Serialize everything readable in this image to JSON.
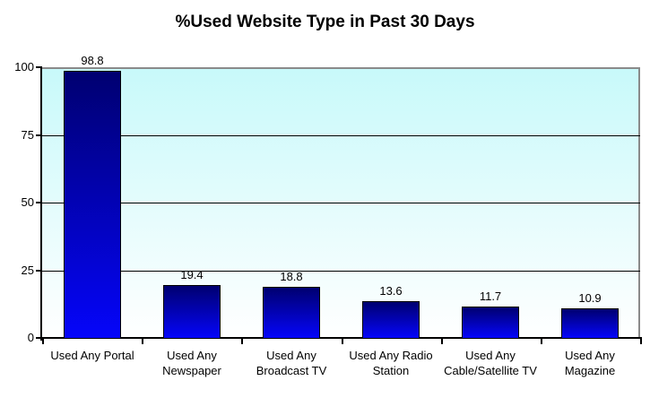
{
  "chart_data": {
    "type": "bar",
    "title": "%Used Website Type in Past 30 Days",
    "categories": [
      "Used Any Portal",
      "Used Any Newspaper",
      "Used Any Broadcast TV",
      "Used Any Radio Station",
      "Used Any Cable/Satellite TV",
      "Used Any Magazine"
    ],
    "values": [
      98.8,
      19.4,
      18.8,
      13.6,
      11.7,
      10.9
    ],
    "value_labels": [
      "98.8",
      "19.4",
      "18.8",
      "13.6",
      "11.7",
      "10.9"
    ],
    "y_ticks": [
      0,
      25,
      50,
      75,
      100
    ],
    "y_tick_labels": [
      "0",
      "25",
      "50",
      "75",
      "100"
    ],
    "ylim": [
      0,
      100
    ],
    "xlabel": "",
    "ylabel": "",
    "grid": true,
    "legend": false,
    "colors": {
      "bar_gradient_top": "#000070",
      "bar_gradient_bottom": "#0505FA",
      "bar_border": "#000000",
      "plot_bg_top": "#C8F9FA",
      "plot_bg_bottom": "#FFFFFF",
      "gridline": "#000000",
      "axis": "#000000",
      "plot_border": "#8A8A8A",
      "text": "#000000",
      "page_bg": "#FFFFFF"
    }
  }
}
